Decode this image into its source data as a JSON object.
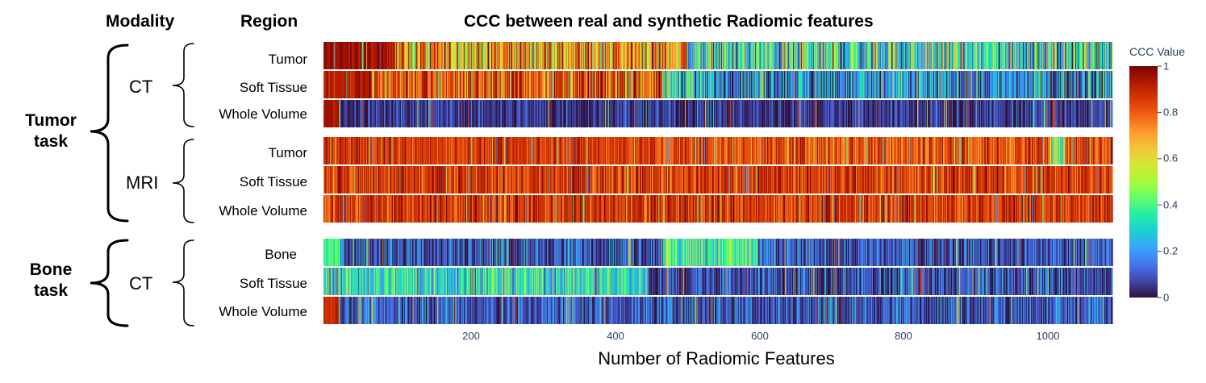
{
  "headers": {
    "modality": "Modality",
    "region": "Region"
  },
  "chart_data": {
    "type": "heatmap",
    "title": "CCC between real and synthetic Radiomic features",
    "xlabel": "Number of Radiomic Features",
    "x_range": [
      1,
      1067
    ],
    "x_ticks": [
      200,
      400,
      600,
      800,
      1000
    ],
    "colorbar": {
      "title": "CCC Value",
      "range": [
        0,
        1
      ],
      "ticks": [
        0,
        0.2,
        0.4,
        0.6,
        0.8,
        1
      ],
      "tick_labels": [
        "0",
        "0.2",
        "0.4",
        "0.6",
        "0.8",
        "1"
      ]
    },
    "colorscale": [
      "#30123b",
      "#4145ab",
      "#4675ed",
      "#39a2fc",
      "#1bcfd4",
      "#24eca6",
      "#61fc6c",
      "#a4fc3b",
      "#d1e834",
      "#f3c63a",
      "#fe9b2d",
      "#f36315",
      "#d93806",
      "#b11901",
      "#7a0402"
    ],
    "tasks": [
      {
        "label": "Tumor\ntask",
        "modalities": [
          {
            "label": "CT",
            "rows": [
              {
                "region": "Tumor",
                "segments": [
                  [
                    0.09,
                    0.95,
                    0.06
                  ],
                  [
                    0.46,
                    0.72,
                    0.3
                  ],
                  [
                    1.0,
                    0.32,
                    0.32
                  ]
                ]
              },
              {
                "region": "Soft Tissue",
                "segments": [
                  [
                    0.06,
                    0.92,
                    0.08
                  ],
                  [
                    0.43,
                    0.82,
                    0.22
                  ],
                  [
                    0.47,
                    0.35,
                    0.3
                  ],
                  [
                    1.0,
                    0.18,
                    0.22
                  ]
                ]
              },
              {
                "region": "Whole Volume",
                "segments": [
                  [
                    0.02,
                    0.95,
                    0.05
                  ],
                  [
                    1.0,
                    0.05,
                    0.12
                  ]
                ]
              }
            ]
          },
          {
            "label": "MRI",
            "rows": [
              {
                "region": "Tumor",
                "segments": [
                  [
                    0.42,
                    0.86,
                    0.1
                  ],
                  [
                    0.92,
                    0.82,
                    0.14
                  ],
                  [
                    0.94,
                    0.55,
                    0.25
                  ],
                  [
                    1.0,
                    0.84,
                    0.12
                  ]
                ]
              },
              {
                "region": "Soft Tissue",
                "segments": [
                  [
                    1.0,
                    0.86,
                    0.14
                  ]
                ]
              },
              {
                "region": "Whole Volume",
                "segments": [
                  [
                    1.0,
                    0.86,
                    0.14
                  ]
                ]
              }
            ]
          }
        ]
      },
      {
        "label": "Bone\ntask",
        "modalities": [
          {
            "label": "CT",
            "rows": [
              {
                "region": "Bone",
                "segments": [
                  [
                    0.02,
                    0.4,
                    0.06
                  ],
                  [
                    0.43,
                    0.1,
                    0.16
                  ],
                  [
                    0.55,
                    0.38,
                    0.2
                  ],
                  [
                    1.0,
                    0.1,
                    0.14
                  ]
                ]
              },
              {
                "region": "Soft Tissue",
                "segments": [
                  [
                    0.41,
                    0.33,
                    0.2
                  ],
                  [
                    1.0,
                    0.08,
                    0.16
                  ]
                ]
              },
              {
                "region": "Whole Volume",
                "segments": [
                  [
                    0.02,
                    0.9,
                    0.06
                  ],
                  [
                    1.0,
                    0.1,
                    0.14
                  ]
                ]
              }
            ]
          }
        ]
      }
    ]
  }
}
